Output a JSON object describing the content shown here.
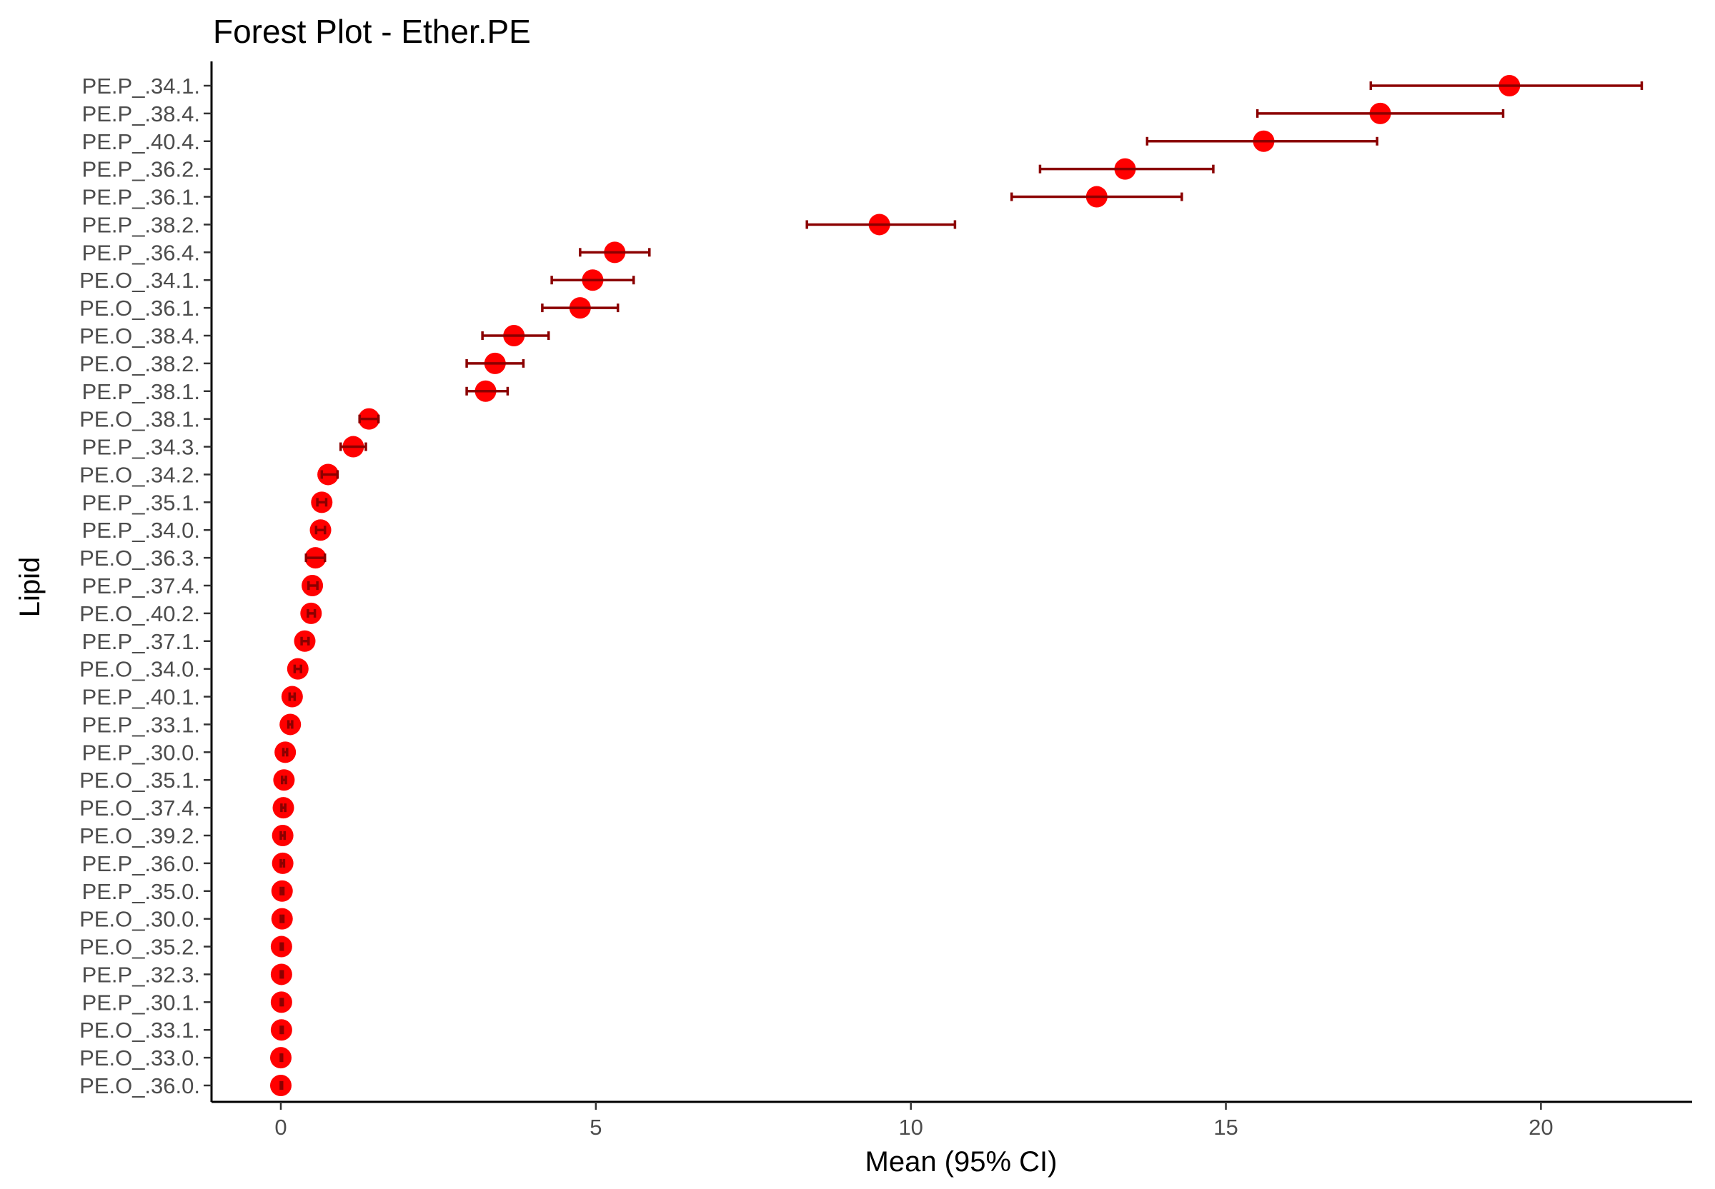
{
  "chart_data": {
    "type": "scatter",
    "title": "Forest Plot - Ether.PE",
    "xlabel": "Mean (95% CI)",
    "ylabel": "Lipid",
    "xlim": [
      -1.1,
      22.4
    ],
    "xticks": [
      0,
      5,
      10,
      15,
      20
    ],
    "grid": false,
    "legend": "none",
    "point_color": "#ff0000",
    "errorbar_color": "#8b0000",
    "categories": [
      "PE.P_.34.1.",
      "PE.P_.38.4.",
      "PE.P_.40.4.",
      "PE.P_.36.2.",
      "PE.P_.36.1.",
      "PE.P_.38.2.",
      "PE.P_.36.4.",
      "PE.O_.34.1.",
      "PE.O_.36.1.",
      "PE.O_.38.4.",
      "PE.O_.38.2.",
      "PE.P_.38.1.",
      "PE.O_.38.1.",
      "PE.P_.34.3.",
      "PE.O_.34.2.",
      "PE.P_.35.1.",
      "PE.P_.34.0.",
      "PE.O_.36.3.",
      "PE.P_.37.4.",
      "PE.O_.40.2.",
      "PE.P_.37.1.",
      "PE.O_.34.0.",
      "PE.P_.40.1.",
      "PE.P_.33.1.",
      "PE.P_.30.0.",
      "PE.O_.35.1.",
      "PE.O_.37.4.",
      "PE.O_.39.2.",
      "PE.P_.36.0.",
      "PE.P_.35.0.",
      "PE.O_.30.0.",
      "PE.O_.35.2.",
      "PE.P_.32.3.",
      "PE.P_.30.1.",
      "PE.O_.33.1.",
      "PE.O_.33.0.",
      "PE.O_.36.0."
    ],
    "mean": [
      19.5,
      17.45,
      15.6,
      13.4,
      12.95,
      9.5,
      5.3,
      4.95,
      4.75,
      3.7,
      3.4,
      3.25,
      1.4,
      1.15,
      0.75,
      0.65,
      0.63,
      0.55,
      0.5,
      0.48,
      0.38,
      0.27,
      0.18,
      0.15,
      0.07,
      0.05,
      0.04,
      0.03,
      0.03,
      0.02,
      0.02,
      0.01,
      0.01,
      0.01,
      0.01,
      0.0,
      0.0
    ],
    "ci_low": [
      17.3,
      15.5,
      13.75,
      12.05,
      11.6,
      8.35,
      4.75,
      4.3,
      4.15,
      3.2,
      2.95,
      2.95,
      1.25,
      0.95,
      0.65,
      0.58,
      0.56,
      0.4,
      0.44,
      0.43,
      0.33,
      0.22,
      0.14,
      0.12,
      0.04,
      0.02,
      0.01,
      0.0,
      0.0,
      0.0,
      0.0,
      0.0,
      0.0,
      0.0,
      0.0,
      0.0,
      0.0
    ],
    "ci_high": [
      21.6,
      19.4,
      17.4,
      14.8,
      14.3,
      10.7,
      5.85,
      5.6,
      5.35,
      4.25,
      3.85,
      3.6,
      1.55,
      1.35,
      0.9,
      0.72,
      0.7,
      0.7,
      0.58,
      0.54,
      0.44,
      0.32,
      0.22,
      0.18,
      0.1,
      0.08,
      0.07,
      0.06,
      0.05,
      0.04,
      0.04,
      0.03,
      0.03,
      0.03,
      0.03,
      0.02,
      0.02
    ]
  }
}
